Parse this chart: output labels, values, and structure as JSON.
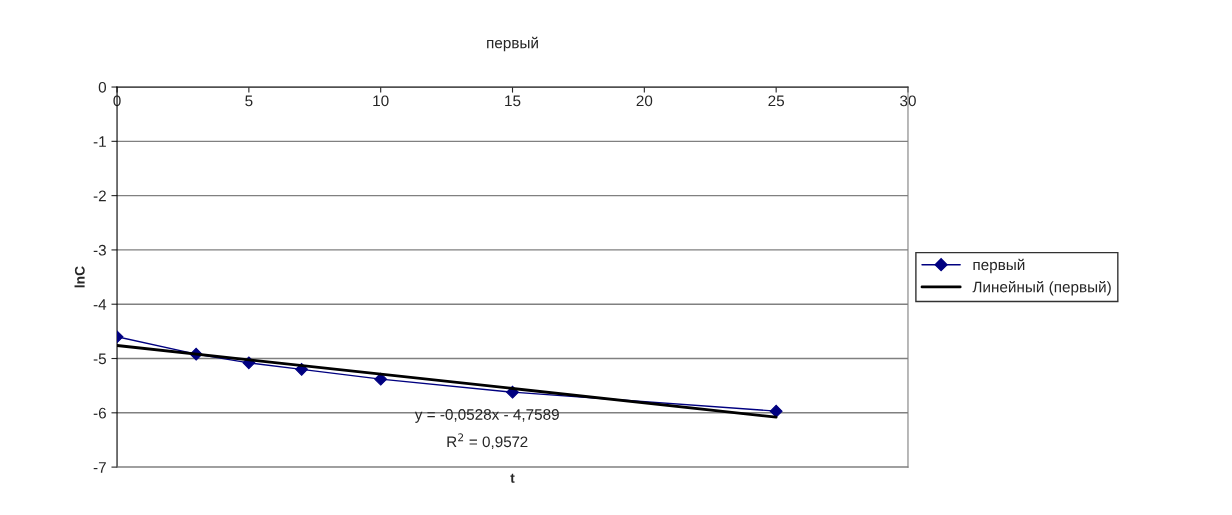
{
  "chart_data": {
    "type": "line",
    "title": "первый",
    "xlabel": "t",
    "ylabel": "lnC",
    "x": [
      0,
      3,
      5,
      7,
      10,
      15,
      25
    ],
    "series": [
      {
        "name": "первый",
        "color": "#000080",
        "values": [
          -4.6,
          -4.92,
          -5.08,
          -5.2,
          -5.38,
          -5.62,
          -5.97
        ],
        "marker": "diamond"
      },
      {
        "name": "Линейный (первый)",
        "color": "#000000",
        "x": [
          0,
          25
        ],
        "values": [
          -4.76,
          -6.08
        ],
        "marker": "none"
      }
    ],
    "annotations": [
      "y = -0,0528x - 4,7589",
      "R$^{2}$ = 0,9572"
    ],
    "xlim": [
      0,
      30
    ],
    "xticks": [
      0,
      5,
      10,
      15,
      20,
      25,
      30
    ],
    "ylim": [
      -7,
      0
    ],
    "yticks": [
      -7,
      -6,
      -5,
      -4,
      -3,
      -2,
      -1,
      0
    ],
    "grid": "y",
    "legend": "right"
  }
}
